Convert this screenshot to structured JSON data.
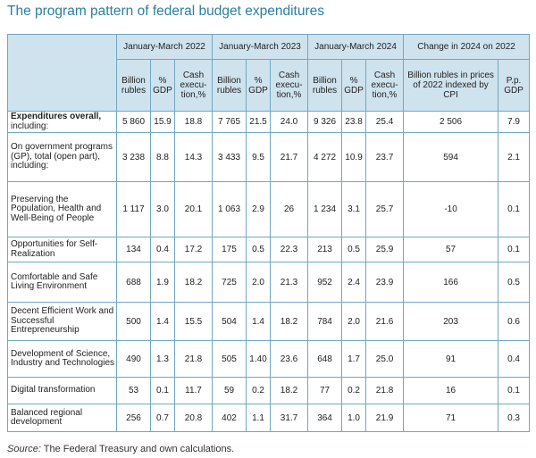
{
  "title": "The program pattern of federal budget expenditures",
  "header": {
    "periods": [
      "January-March 2022",
      "January-March 2023",
      "January-March 2024"
    ],
    "change_group": "Change in 2024 on 2022",
    "sub_billion": "Billion rubles",
    "sub_gdp": "% GDP",
    "sub_cash": "Cash execu-tion,%",
    "sub_change_rub": "Billion rubles in prices of 2022 indexed by CPI",
    "sub_change_pp": "P.p. GDP"
  },
  "rows": [
    {
      "label_main": "Expenditures overall,",
      "label_rest": "including:",
      "bold": true,
      "v": [
        "5 860",
        "15.9",
        "18.8",
        "7 765",
        "21.5",
        "24.0",
        "9 326",
        "23.8",
        "25.4",
        "2 506",
        "7.9"
      ]
    },
    {
      "label_main": "On government programs (GP), total (open part), including:",
      "label_rest": "",
      "bold": false,
      "v": [
        "3 238",
        "8.8",
        "14.3",
        "3 433",
        "9.5",
        "21.7",
        "4 272",
        "10.9",
        "23.7",
        "594",
        "2.1"
      ]
    },
    {
      "label_main": "Preserving the Population, Health and Well-Being of People",
      "label_rest": "",
      "bold": false,
      "v": [
        "1 117",
        "3.0",
        "20.1",
        "1 063",
        "2.9",
        "26",
        "1 234",
        "3.1",
        "25.7",
        "-10",
        "0.1"
      ]
    },
    {
      "label_main": "Opportunities for Self-Realization",
      "label_rest": "",
      "bold": false,
      "v": [
        "134",
        "0.4",
        "17.2",
        "175",
        "0.5",
        "22.3",
        "213",
        "0.5",
        "25.9",
        "57",
        "0.1"
      ]
    },
    {
      "label_main": "Comfortable and Safe Living Environment",
      "label_rest": "",
      "bold": false,
      "v": [
        "688",
        "1.9",
        "18.2",
        "725",
        "2.0",
        "21.3",
        "952",
        "2.4",
        "23.9",
        "166",
        "0.5"
      ]
    },
    {
      "label_main": "Decent Efficient Work and Successful Entrepreneurship",
      "label_rest": "",
      "bold": false,
      "v": [
        "500",
        "1.4",
        "15.5",
        "504",
        "1.4",
        "18.2",
        "784",
        "2.0",
        "21.6",
        "203",
        "0.6"
      ]
    },
    {
      "label_main": "Development of Science, Industry and Technologies",
      "label_rest": "",
      "bold": false,
      "v": [
        "490",
        "1.3",
        "21.8",
        "505",
        "1.40",
        "23.6",
        "648",
        "1.7",
        "25.0",
        "91",
        "0.4"
      ]
    },
    {
      "label_main": "Digital transformation",
      "label_rest": "",
      "bold": false,
      "v": [
        "53",
        "0.1",
        "11.7",
        "59",
        "0.2",
        "18.2",
        "77",
        "0.2",
        "21.8",
        "16",
        "0.1"
      ]
    },
    {
      "label_main": "Balanced regional development",
      "label_rest": "",
      "bold": false,
      "v": [
        "256",
        "0.7",
        "20.8",
        "402",
        "1.1",
        "31.7",
        "364",
        "1.0",
        "21.9",
        "71",
        "0.3"
      ]
    }
  ],
  "source": {
    "label": "Source:",
    "text": " The Federal Treasury and own calculations."
  }
}
